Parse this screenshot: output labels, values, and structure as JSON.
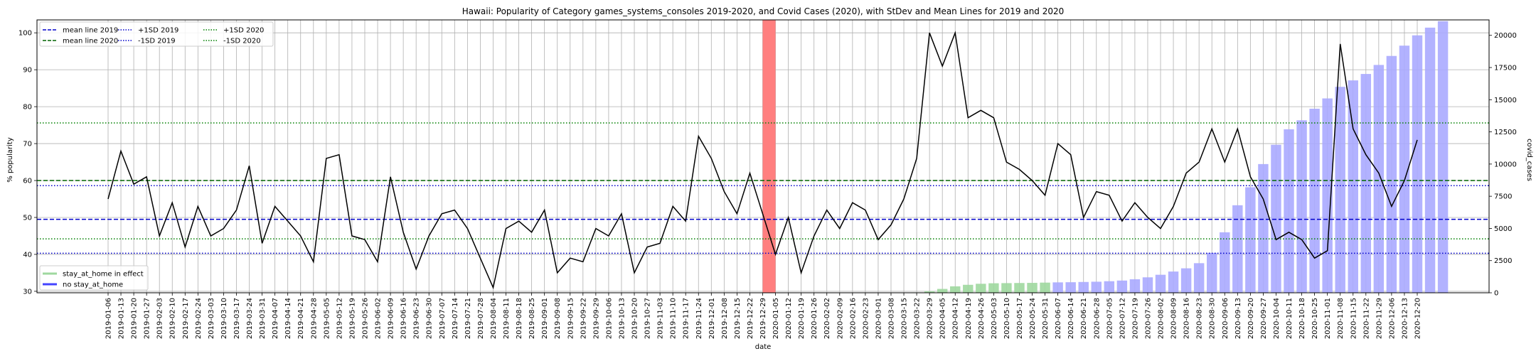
{
  "chart_data": {
    "type": "line",
    "title": "Hawaii: Popularity of Category games_systems_consoles 2019-2020, and Covid Cases (2020), with StDev and Mean Lines for 2019 and 2020",
    "xlabel": "date",
    "ylabel": "% popularity",
    "y2label": "covid_cases",
    "ylim": [
      29.6,
      103.5
    ],
    "y2lim": [
      0,
      21200
    ],
    "yticks": [
      30,
      40,
      50,
      60,
      70,
      80,
      90,
      100
    ],
    "y2ticks": [
      0,
      2500,
      5000,
      7500,
      10000,
      12500,
      15000,
      17500,
      20000
    ],
    "grid": true,
    "x": [
      "2019-01-06",
      "2019-01-13",
      "2019-01-20",
      "2019-01-27",
      "2019-02-03",
      "2019-02-10",
      "2019-02-17",
      "2019-02-24",
      "2019-03-03",
      "2019-03-10",
      "2019-03-17",
      "2019-03-24",
      "2019-03-31",
      "2019-04-07",
      "2019-04-14",
      "2019-04-21",
      "2019-04-28",
      "2019-05-05",
      "2019-05-12",
      "2019-05-19",
      "2019-05-26",
      "2019-06-02",
      "2019-06-09",
      "2019-06-16",
      "2019-06-23",
      "2019-06-30",
      "2019-07-07",
      "2019-07-14",
      "2019-07-21",
      "2019-07-28",
      "2019-08-04",
      "2019-08-11",
      "2019-08-18",
      "2019-08-25",
      "2019-09-01",
      "2019-09-08",
      "2019-09-15",
      "2019-09-22",
      "2019-09-29",
      "2019-10-06",
      "2019-10-13",
      "2019-10-20",
      "2019-10-27",
      "2019-11-03",
      "2019-11-10",
      "2019-11-17",
      "2019-11-24",
      "2019-12-01",
      "2019-12-08",
      "2019-12-15",
      "2019-12-22",
      "2019-12-29",
      "2020-01-05",
      "2020-01-12",
      "2020-01-19",
      "2020-01-26",
      "2020-02-02",
      "2020-02-09",
      "2020-02-16",
      "2020-02-23",
      "2020-03-01",
      "2020-03-08",
      "2020-03-15",
      "2020-03-22",
      "2020-03-29",
      "2020-04-05",
      "2020-04-12",
      "2020-04-19",
      "2020-04-26",
      "2020-05-03",
      "2020-05-10",
      "2020-05-17",
      "2020-05-24",
      "2020-05-31",
      "2020-06-07",
      "2020-06-14",
      "2020-06-21",
      "2020-06-28",
      "2020-07-05",
      "2020-07-12",
      "2020-07-19",
      "2020-07-26",
      "2020-08-02",
      "2020-08-09",
      "2020-08-16",
      "2020-08-23",
      "2020-08-30",
      "2020-09-06",
      "2020-09-13",
      "2020-09-20",
      "2020-09-27",
      "2020-10-04",
      "2020-10-11",
      "2020-10-18",
      "2020-10-25",
      "2020-11-01",
      "2020-11-08",
      "2020-11-15",
      "2020-11-22",
      "2020-11-29",
      "2020-12-06",
      "2020-12-13",
      "2020-12-20"
    ],
    "series": [
      {
        "name": "popularity",
        "color": "#000000",
        "values": [
          55,
          68,
          59,
          61,
          45,
          54,
          42,
          53,
          45,
          47,
          52,
          64,
          43,
          53,
          49,
          45,
          38,
          66,
          67,
          45,
          44,
          38,
          61,
          46,
          36,
          45,
          51,
          52,
          47,
          39,
          31,
          47,
          49,
          46,
          52,
          35,
          39,
          38,
          47,
          45,
          51,
          35,
          42,
          43,
          53,
          49,
          72,
          66,
          57,
          51,
          62,
          51,
          40,
          50,
          35,
          45,
          52,
          47,
          54,
          52,
          44,
          48,
          55,
          66,
          100,
          91,
          100,
          77,
          79,
          77,
          65,
          63,
          60,
          56,
          70,
          67,
          50,
          57,
          56,
          49,
          54,
          50,
          47,
          53,
          62,
          65,
          74,
          65,
          74,
          61,
          55,
          44,
          46,
          44,
          39,
          41,
          97,
          74,
          67,
          62,
          53,
          60,
          71
        ]
      }
    ],
    "bars": {
      "name": "covid_cases",
      "start_index": 63,
      "values": [
        30,
        120,
        300,
        500,
        620,
        700,
        740,
        750,
        760,
        770,
        790,
        810,
        820,
        840,
        860,
        900,
        950,
        1050,
        1200,
        1400,
        1650,
        1900,
        2300,
        3100,
        4700,
        6800,
        8200,
        10000,
        11500,
        12700,
        13400,
        14300,
        15100,
        16000,
        16500,
        17000,
        17700,
        18400,
        19200,
        20000,
        20600,
        21100
      ]
    },
    "stay_at_home_bars": {
      "start_index": 63,
      "end_index": 73,
      "color": "#9fd89f"
    },
    "stay_at_home_color": "#9fd89f",
    "no_stay_at_home_color": "#aaaaff",
    "highlight": {
      "index": 51,
      "color": "#ff7f7f"
    },
    "reference_lines": [
      {
        "label": "mean line 2019",
        "value": 49.5,
        "color": "#0000cc",
        "style": "dashed"
      },
      {
        "label": "mean line 2020",
        "value": 60,
        "color": "#006400",
        "style": "dashed"
      },
      {
        "label": "+1SD 2019",
        "value": 58.6,
        "color": "#0000cc",
        "style": "dotted"
      },
      {
        "label": "-1SD 2019",
        "value": 40.3,
        "color": "#0000cc",
        "style": "dotted"
      },
      {
        "label": "+1SD 2020",
        "value": 75.6,
        "color": "#008000",
        "style": "dotted"
      },
      {
        "label": "-1SD 2020",
        "value": 44.2,
        "color": "#008000",
        "style": "dotted"
      }
    ],
    "legend_top": [
      "mean line 2019",
      "mean line 2020",
      "+1SD 2019",
      "-1SD 2019",
      "+1SD 2020",
      "-1SD 2020"
    ],
    "legend_bottom": [
      "stay_at_home in effect",
      "no stay_at_home"
    ],
    "legend_placement": "top-left"
  }
}
